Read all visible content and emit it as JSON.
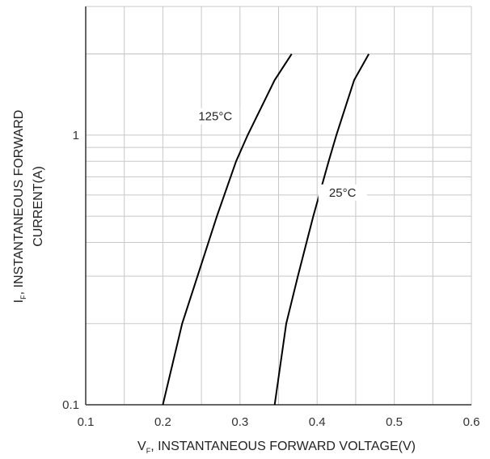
{
  "chart_data": {
    "type": "line",
    "xlabel": {
      "prefix": "V",
      "subscript": "F",
      "text": ", INSTANTANEOUS FORWARD VOLTAGE(V)"
    },
    "ylabel": {
      "prefix": "I",
      "subscript": "F",
      "line1": ", INSTANTANEOUS FORWARD",
      "line2": "CURRENT(A)"
    },
    "xlim": [
      0.1,
      0.6
    ],
    "ylim": [
      0.1,
      3.0
    ],
    "yscale": "log",
    "xticks": [
      0.1,
      0.2,
      0.3,
      0.4,
      0.5,
      0.6
    ],
    "xtick_labels": [
      "0.1",
      "0.2",
      "0.3",
      "0.4",
      "0.5",
      "0.6"
    ],
    "yticks": [
      0.1,
      1
    ],
    "ytick_labels": [
      "0.1",
      "1"
    ],
    "grid": true,
    "series": [
      {
        "name": "125°C",
        "points": [
          [
            0.2,
            0.1
          ],
          [
            0.225,
            0.2
          ],
          [
            0.245,
            0.3
          ],
          [
            0.27,
            0.5
          ],
          [
            0.295,
            0.8
          ],
          [
            0.31,
            1.0
          ],
          [
            0.345,
            1.6
          ],
          [
            0.367,
            2.0
          ]
        ]
      },
      {
        "name": "25°C",
        "points": [
          [
            0.345,
            0.1
          ],
          [
            0.36,
            0.2
          ],
          [
            0.375,
            0.3
          ],
          [
            0.395,
            0.5
          ],
          [
            0.415,
            0.8
          ],
          [
            0.425,
            1.0
          ],
          [
            0.448,
            1.6
          ],
          [
            0.467,
            2.0
          ]
        ]
      }
    ]
  },
  "colors": {
    "grid": "#c8c8c8",
    "axis": "#333333",
    "line": "#000000"
  }
}
